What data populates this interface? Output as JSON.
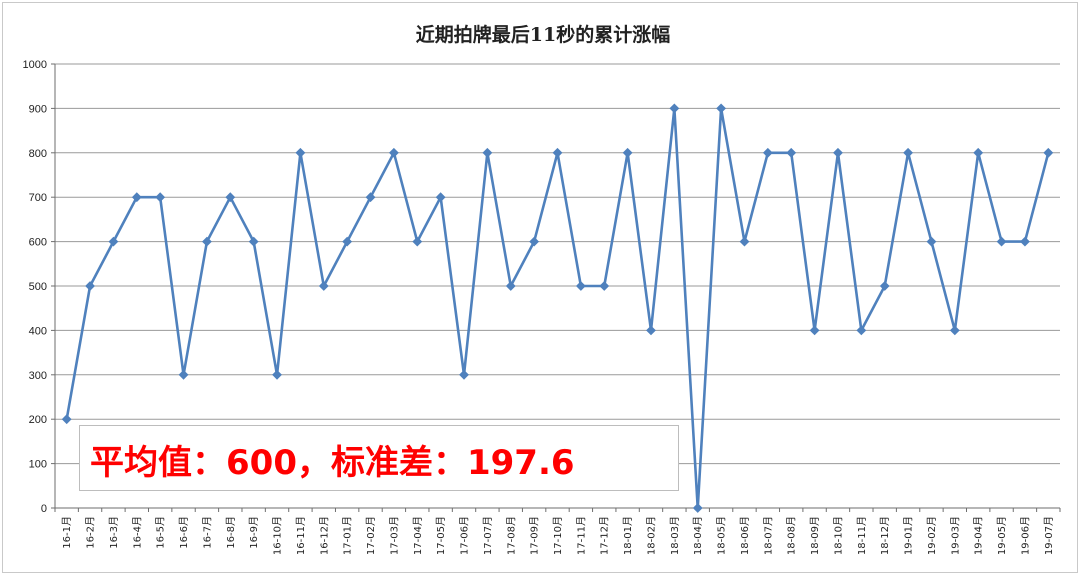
{
  "chart_data": {
    "type": "line",
    "title": "近期拍牌最后11秒的累计涨幅",
    "xlabel": "",
    "ylabel": "",
    "ylim": [
      0,
      1000
    ],
    "yticks": [
      0,
      100,
      200,
      300,
      400,
      500,
      600,
      700,
      800,
      900,
      1000
    ],
    "grid": "horizontal",
    "legend": "none",
    "series_color": "#4f81bd",
    "categories": [
      "16-1月",
      "16-2月",
      "16-3月",
      "16-4月",
      "16-5月",
      "16-6月",
      "16-7月",
      "16-8月",
      "16-9月",
      "16-10月",
      "16-11月",
      "16-12月",
      "17-01月",
      "17-02月",
      "17-03月",
      "17-04月",
      "17-05月",
      "17-06月",
      "17-07月",
      "17-08月",
      "17-09月",
      "17-10月",
      "17-11月",
      "17-12月",
      "18-01月",
      "18-02月",
      "18-03月",
      "18-04月",
      "18-05月",
      "18-06月",
      "18-07月",
      "18-08月",
      "18-09月",
      "18-10月",
      "18-11月",
      "18-12月",
      "19-01月",
      "19-02月",
      "19-03月",
      "19-04月",
      "19-05月",
      "19-06月",
      "19-07月"
    ],
    "values": [
      200,
      500,
      600,
      700,
      700,
      300,
      600,
      700,
      600,
      300,
      800,
      500,
      600,
      700,
      800,
      600,
      700,
      300,
      800,
      500,
      600,
      800,
      500,
      500,
      800,
      400,
      900,
      0,
      900,
      600,
      800,
      800,
      400,
      800,
      400,
      500,
      800,
      600,
      400,
      800,
      600,
      600,
      800
    ],
    "annotation": {
      "text": "平均值：600，标准差：197.6",
      "color": "#ff0000"
    }
  }
}
